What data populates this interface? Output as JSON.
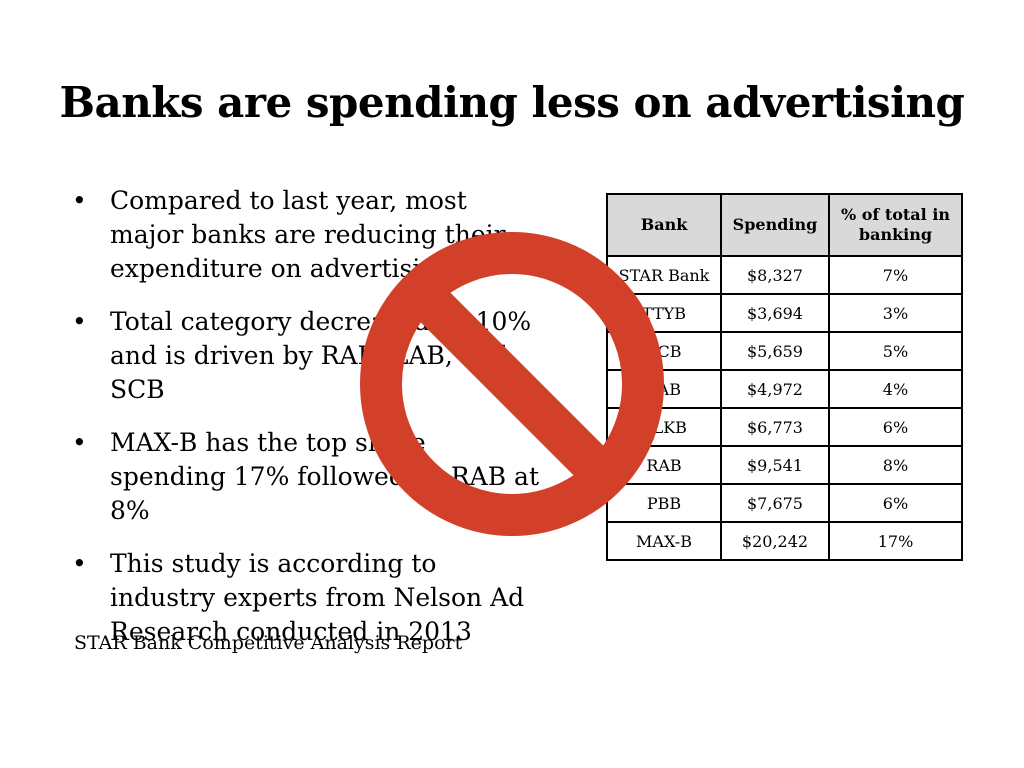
{
  "slide": {
    "title": "Banks are spending less on advertising",
    "bullets": [
      "Compared to last year, most major banks are reducing their expenditure on advertising",
      "Total category decreased by 10% and is driven by RAB, LAB, and SCB",
      "MAX-B has the top share spending 17% followed by RAB at 8%",
      "This study is according to industry experts from Nelson Ad Research conducted in 2013"
    ],
    "bullet_marker": "•",
    "source": "STAR Bank Competitive Analysis Report"
  },
  "table": {
    "headers": [
      "Bank",
      "Spending",
      "% of total in banking"
    ],
    "rows": [
      [
        "STAR Bank",
        "$8,327",
        "7%"
      ],
      [
        "TTYB",
        "$3,694",
        "3%"
      ],
      [
        "SCB",
        "$5,659",
        "5%"
      ],
      [
        "LAB",
        "$4,972",
        "4%"
      ],
      [
        "ALKB",
        "$6,773",
        "6%"
      ],
      [
        "RAB",
        "$9,541",
        "8%"
      ],
      [
        "PBB",
        "$7,675",
        "6%"
      ],
      [
        "MAX-B",
        "$20,242",
        "17%"
      ]
    ]
  },
  "overlay": {
    "icon": "prohibition-sign-icon",
    "color": "#d2402a"
  }
}
